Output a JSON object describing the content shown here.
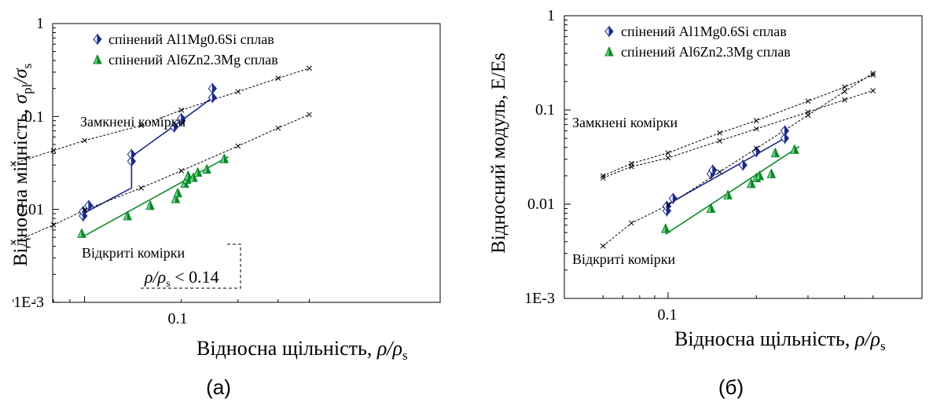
{
  "figure": {
    "panels": [
      {
        "panel_label": "(а)",
        "ytitle_main": "Відносна міцність, ",
        "ytitle_sym": "σ",
        "ytitle_sub1": "pl",
        "ytitle_slash": "/σ",
        "ytitle_sub2": "s",
        "xtitle_main": "Відносна щільність, ",
        "xtitle_sym": "ρ/ρ",
        "xtitle_sub": "s",
        "note_sym": "ρ/ρ",
        "note_sub": "s",
        "note_rest": " < 0.14"
      },
      {
        "panel_label": "(б)",
        "ytitle_main": "Відносний модуль, E/Es",
        "xtitle_main": "Відносна щільність, ",
        "xtitle_sym": "ρ/ρ",
        "xtitle_sub": "s"
      }
    ]
  },
  "chart_data": [
    {
      "type": "scatter",
      "panel": "(а)",
      "xscale": "log",
      "yscale": "log",
      "xlim": [
        0.05,
        0.55
      ],
      "ylim": [
        0.001,
        1
      ],
      "ytick_labels": [
        {
          "value": 0.001,
          "label": "1E-3"
        },
        {
          "value": 0.01,
          "label": "0.01"
        },
        {
          "value": 0.1,
          "label": "0.1"
        },
        {
          "value": 1,
          "label": "1"
        }
      ],
      "xtick_labels": [
        {
          "value": 0.1,
          "label": "0.1"
        }
      ],
      "legend_position": "top",
      "series": [
        {
          "name": "спінений Al1Mg0.6Si сплав",
          "marker": "diamond",
          "color": "#1a2a8c",
          "points": [
            [
              0.099,
              0.0085
            ],
            [
              0.099,
              0.0095
            ],
            [
              0.103,
              0.011
            ],
            [
              0.14,
              0.033
            ],
            [
              0.14,
              0.039
            ],
            [
              0.19,
              0.077
            ],
            [
              0.2,
              0.09
            ],
            [
              0.2,
              0.095
            ],
            [
              0.25,
              0.16
            ],
            [
              0.25,
              0.2
            ]
          ],
          "fit": [
            [
              0.099,
              0.009
            ],
            [
              0.14,
              0.017
            ],
            [
              0.14,
              0.037
            ],
            [
              0.2,
              0.09
            ],
            [
              0.25,
              0.16
            ],
            [
              0.25,
              0.2
            ]
          ]
        },
        {
          "name": "спінений Al6Zn2.3Mg сплав",
          "marker": "triangle",
          "color": "#0a8a2a",
          "points": [
            [
              0.098,
              0.0055
            ],
            [
              0.136,
              0.0085
            ],
            [
              0.16,
              0.011
            ],
            [
              0.192,
              0.013
            ],
            [
              0.195,
              0.015
            ],
            [
              0.205,
              0.019
            ],
            [
              0.208,
              0.021
            ],
            [
              0.21,
              0.023
            ],
            [
              0.218,
              0.022
            ],
            [
              0.225,
              0.025
            ],
            [
              0.24,
              0.027
            ],
            [
              0.272,
              0.035
            ]
          ],
          "fit": [
            [
              0.098,
              0.005
            ],
            [
              0.28,
              0.037
            ]
          ]
        },
        {
          "name": "Замкнені комірки",
          "marker": "x",
          "color": "#000000",
          "points": [
            [
              0.06,
              0.031
            ],
            [
              0.08,
              0.043
            ],
            [
              0.1,
              0.055
            ],
            [
              0.15,
              0.08
            ],
            [
              0.2,
              0.117
            ],
            [
              0.3,
              0.185
            ],
            [
              0.4,
              0.258
            ],
            [
              0.5,
              0.33
            ]
          ]
        },
        {
          "name": "Відкриті комірки",
          "marker": "x",
          "color": "#000000",
          "points": [
            [
              0.06,
              0.0044
            ],
            [
              0.08,
              0.0068
            ],
            [
              0.1,
              0.0098
            ],
            [
              0.15,
              0.017
            ],
            [
              0.2,
              0.026
            ],
            [
              0.3,
              0.048
            ],
            [
              0.4,
              0.075
            ],
            [
              0.5,
              0.105
            ]
          ]
        }
      ],
      "annotations": [
        "Замкнені комірки",
        "Відкриті комірки",
        "ρ/ρs < 0.14"
      ],
      "threshold_x": 0.14
    },
    {
      "type": "scatter",
      "panel": "(б)",
      "xscale": "log",
      "yscale": "log",
      "xlim": [
        0.05,
        0.55
      ],
      "ylim": [
        0.001,
        1
      ],
      "ytick_labels": [
        {
          "value": 0.001,
          "label": "1E-3"
        },
        {
          "value": 0.01,
          "label": "0.01"
        },
        {
          "value": 0.1,
          "label": "0.1"
        },
        {
          "value": 1,
          "label": "1"
        }
      ],
      "xtick_labels": [
        {
          "value": 0.1,
          "label": "0.1"
        }
      ],
      "legend_position": "top",
      "series": [
        {
          "name": "спінений Al1Mg0.6Si сплав",
          "marker": "diamond",
          "color": "#1a2a8c",
          "points": [
            [
              0.099,
              0.0085
            ],
            [
              0.099,
              0.0095
            ],
            [
              0.104,
              0.0115
            ],
            [
              0.14,
              0.021
            ],
            [
              0.142,
              0.023
            ],
            [
              0.18,
              0.026
            ],
            [
              0.2,
              0.036
            ],
            [
              0.25,
              0.05
            ],
            [
              0.25,
              0.06
            ]
          ],
          "fit": [
            [
              0.1,
              0.01
            ],
            [
              0.25,
              0.05
            ]
          ]
        },
        {
          "name": "спінений Al6Zn2.3Mg сплав",
          "marker": "triangle",
          "color": "#0a8a2a",
          "points": [
            [
              0.098,
              0.0055
            ],
            [
              0.14,
              0.009
            ],
            [
              0.16,
              0.0125
            ],
            [
              0.192,
              0.0165
            ],
            [
              0.2,
              0.019
            ],
            [
              0.205,
              0.02
            ],
            [
              0.225,
              0.021
            ],
            [
              0.232,
              0.035
            ],
            [
              0.27,
              0.038
            ]
          ],
          "fit": [
            [
              0.098,
              0.0048
            ],
            [
              0.28,
              0.041
            ]
          ]
        },
        {
          "name": "Замкнені комірки",
          "marker": "x",
          "color": "#000000",
          "points": [
            [
              0.06,
              0.02
            ],
            [
              0.075,
              0.027
            ],
            [
              0.1,
              0.035
            ],
            [
              0.15,
              0.057
            ],
            [
              0.2,
              0.077
            ],
            [
              0.3,
              0.124
            ],
            [
              0.4,
              0.175
            ],
            [
              0.5,
              0.235
            ]
          ]
        },
        {
          "name": "Замкнені комірки",
          "marker": "x",
          "color": "#000000",
          "points": [
            [
              0.06,
              0.019
            ],
            [
              0.075,
              0.025
            ],
            [
              0.1,
              0.031
            ],
            [
              0.15,
              0.047
            ],
            [
              0.2,
              0.063
            ],
            [
              0.3,
              0.095
            ],
            [
              0.4,
              0.128
            ],
            [
              0.5,
              0.16
            ]
          ]
        },
        {
          "name": "Відкриті комірки",
          "marker": "x",
          "color": "#000000",
          "points": [
            [
              0.06,
              0.0036
            ],
            [
              0.075,
              0.0063
            ],
            [
              0.1,
              0.0098
            ],
            [
              0.15,
              0.022
            ],
            [
              0.2,
              0.039
            ],
            [
              0.3,
              0.088
            ],
            [
              0.4,
              0.157
            ],
            [
              0.5,
              0.245
            ]
          ]
        }
      ],
      "annotations": [
        "Замкнені комірки",
        "Відкриті комірки"
      ]
    }
  ]
}
